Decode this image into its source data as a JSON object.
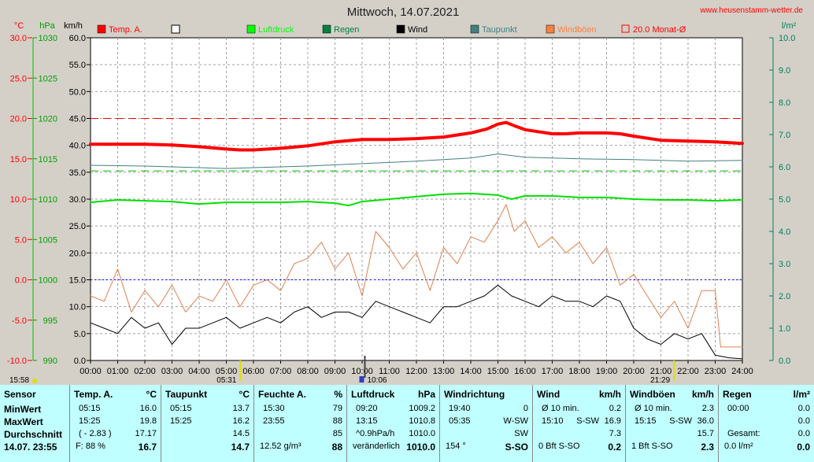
{
  "website": "www.heusenstamm-wetter.de",
  "chart_data": {
    "type": "line",
    "title": "Mittwoch, 14.07.2021",
    "axes": {
      "temp": {
        "unit": "°C",
        "min": -10,
        "max": 30,
        "ticks": [
          "30.0",
          "25.0",
          "20.0",
          "15.0",
          "10.0",
          "5.0",
          "0.0",
          "-5.0",
          "-10.0"
        ],
        "color": "#ff0000"
      },
      "pressure": {
        "unit": "hPa",
        "min": 990,
        "max": 1030,
        "ticks": [
          "1030",
          "1025",
          "1020",
          "1015",
          "1010",
          "1005",
          "1000",
          "995",
          "990"
        ],
        "color": "#00c000"
      },
      "wind": {
        "unit": "km/h",
        "min": 0,
        "max": 60,
        "ticks": [
          "60.0",
          "55.0",
          "50.0",
          "45.0",
          "40.0",
          "35.0",
          "30.0",
          "25.0",
          "20.0",
          "15.0",
          "10.0",
          "5.0",
          "0.0"
        ],
        "color": "#000000"
      },
      "rain": {
        "unit": "l/m²",
        "min": 0,
        "max": 10,
        "ticks": [
          "10.0",
          "9.0",
          "8.0",
          "7.0",
          "6.0",
          "5.0",
          "4.0",
          "3.0",
          "2.0",
          "1.0",
          "0.0"
        ],
        "color": "#008060"
      }
    },
    "x_ticks": [
      "00:00",
      "01:00",
      "02:00",
      "03:00",
      "04:00",
      "05:00",
      "06:00",
      "07:00",
      "08:00",
      "09:00",
      "10:00",
      "11:00",
      "12:00",
      "13:00",
      "14:00",
      "15:00",
      "16:00",
      "17:00",
      "18:00",
      "19:00",
      "20:00",
      "21:00",
      "22:00",
      "23:00",
      "24:00"
    ],
    "legend": [
      {
        "name": "Temp. A.",
        "color": "#ff0000",
        "style": "filled"
      },
      {
        "name": "",
        "color": "#ffffff",
        "style": "empty"
      },
      {
        "name": "Luftdruck",
        "color": "#00ff00",
        "style": "filled"
      },
      {
        "name": "Regen",
        "color": "#008040",
        "style": "filled"
      },
      {
        "name": "Wind",
        "color": "#000000",
        "style": "filled"
      },
      {
        "name": "Taupunkt",
        "color": "#408080",
        "style": "filled"
      },
      {
        "name": "Windböen",
        "color": "#ff8040",
        "style": "filled"
      },
      {
        "name": "20.0 Monat-Ø",
        "color": "#ff0000",
        "style": "outline"
      }
    ],
    "reference_lines": [
      {
        "axis": "temp",
        "value": 20,
        "color": "#ff0000"
      },
      {
        "axis": "temp",
        "value": 13.5,
        "color": "#00c000"
      },
      {
        "axis": "temp",
        "value": 0,
        "color": "#0000ff"
      }
    ],
    "markers": {
      "sunrise": "05:31",
      "sunset": "21:29",
      "current": "10:06",
      "left_time": "15:58"
    },
    "series": [
      {
        "name": "Temp. A.",
        "axis": "temp",
        "color": "#ff0000",
        "width": 4,
        "x": [
          0,
          1,
          2,
          3,
          4,
          5,
          5.5,
          6,
          7,
          8,
          9,
          10,
          11,
          12,
          13,
          14,
          14.6,
          15,
          15.3,
          15.6,
          16,
          17,
          17.5,
          18,
          19,
          19.5,
          20,
          21,
          22,
          23,
          23.5,
          24
        ],
        "y": [
          16.8,
          16.8,
          16.8,
          16.7,
          16.5,
          16.2,
          16.1,
          16.1,
          16.3,
          16.6,
          17.1,
          17.4,
          17.4,
          17.5,
          17.7,
          18.2,
          18.7,
          19.3,
          19.5,
          19.1,
          18.6,
          18.1,
          18.1,
          18.2,
          18.2,
          18.1,
          17.8,
          17.3,
          17.2,
          17.1,
          17.0,
          16.9
        ]
      },
      {
        "name": "Taupunkt",
        "axis": "temp",
        "color": "#408080",
        "width": 1,
        "x": [
          0,
          2,
          4,
          5,
          6,
          8,
          10,
          12,
          14,
          15,
          15.5,
          16,
          18,
          20,
          22,
          24
        ],
        "y": [
          14.2,
          14.1,
          13.9,
          13.8,
          13.9,
          14.1,
          14.4,
          14.7,
          15.1,
          15.6,
          15.4,
          15.2,
          15.0,
          14.9,
          14.7,
          14.8
        ]
      },
      {
        "name": "Luftdruck",
        "axis": "pressure",
        "color": "#00e000",
        "width": 2,
        "x": [
          0,
          1,
          2,
          3,
          4,
          5,
          6,
          7,
          8,
          9,
          9.5,
          10,
          11,
          12,
          13,
          14,
          15,
          15.5,
          16,
          17,
          18,
          19,
          20,
          21,
          22,
          23,
          24
        ],
        "y": [
          1009.6,
          1009.9,
          1009.8,
          1009.7,
          1009.4,
          1009.6,
          1009.6,
          1009.6,
          1009.7,
          1009.5,
          1009.2,
          1009.7,
          1010.0,
          1010.3,
          1010.6,
          1010.7,
          1010.5,
          1010.0,
          1010.4,
          1010.4,
          1010.2,
          1010.2,
          1010.0,
          1009.9,
          1009.9,
          1009.8,
          1009.9
        ]
      },
      {
        "name": "Windböen",
        "axis": "wind",
        "color": "#e08050",
        "width": 1,
        "x": [
          0,
          0.5,
          1,
          1.5,
          2,
          2.5,
          3,
          3.5,
          4,
          4.5,
          5,
          5.5,
          6,
          6.5,
          7,
          7.5,
          8,
          8.5,
          9,
          9.5,
          10,
          10.5,
          11,
          11.5,
          12,
          12.5,
          13,
          13.5,
          14,
          14.5,
          15,
          15.3,
          15.6,
          16,
          16.5,
          17,
          17.5,
          18,
          18.5,
          19,
          19.5,
          20,
          20.5,
          21,
          21.5,
          22,
          22.5,
          23,
          23.2,
          24
        ],
        "y": [
          12,
          11,
          17,
          9,
          13,
          10,
          14,
          9,
          12,
          11,
          15,
          10,
          14,
          15,
          13,
          18,
          19,
          22,
          17,
          20,
          12,
          24,
          21,
          17,
          20,
          13,
          21,
          18,
          23,
          22,
          26,
          29,
          24,
          26,
          21,
          23,
          20,
          22,
          18,
          21,
          14,
          16,
          12,
          8,
          11,
          6,
          13,
          13,
          2.5,
          2.5
        ]
      },
      {
        "name": "Wind",
        "axis": "wind",
        "color": "#000000",
        "width": 1,
        "x": [
          0,
          0.5,
          1,
          1.5,
          2,
          2.5,
          3,
          3.5,
          4,
          4.5,
          5,
          5.5,
          6,
          6.5,
          7,
          7.5,
          8,
          8.5,
          9,
          9.5,
          10,
          10.5,
          11,
          11.5,
          12,
          12.5,
          13,
          13.5,
          14,
          14.5,
          15,
          15.5,
          16,
          16.5,
          17,
          17.5,
          18,
          18.5,
          19,
          19.5,
          20,
          20.5,
          21,
          21.5,
          22,
          22.5,
          23,
          23.5,
          24
        ],
        "y": [
          7,
          6,
          5,
          8,
          6,
          7,
          3,
          6,
          6,
          7,
          8,
          6,
          7,
          8,
          7,
          9,
          10,
          8,
          9,
          9,
          8,
          11,
          10,
          9,
          8,
          7,
          10,
          10,
          11,
          12,
          14,
          12,
          11,
          10,
          12,
          11,
          11,
          10,
          12,
          11,
          6,
          4,
          3,
          5,
          4,
          5,
          1,
          0.5,
          0.3
        ]
      }
    ]
  },
  "table": {
    "sensor": {
      "header": "Sensor",
      "rows": [
        "MinWert",
        "MaxWert",
        "Durchschnitt"
      ],
      "footer": "14.07. 23:55"
    },
    "temp": {
      "header": "Temp. A.",
      "unit": "°C",
      "rows": [
        [
          "05:15",
          "16.0"
        ],
        [
          "15:25",
          "19.8"
        ],
        [
          "( - 2.83 )",
          "17.17"
        ]
      ],
      "footer": [
        "F: 88 %",
        "16.7"
      ]
    },
    "taupunkt": {
      "header": "Taupunkt",
      "unit": "°C",
      "rows": [
        [
          "05:15",
          "13.7"
        ],
        [
          "15:25",
          "16.2"
        ],
        [
          "",
          "14.5"
        ]
      ],
      "footer": [
        "",
        "14.7"
      ]
    },
    "feuchte": {
      "header": "Feuchte A.",
      "unit": "%",
      "rows": [
        [
          "15:30",
          "79"
        ],
        [
          "23:55",
          "88"
        ],
        [
          "",
          "85"
        ]
      ],
      "footer": [
        "12.52 g/m³",
        "88"
      ]
    },
    "luftdruck": {
      "header": "Luftdruck",
      "unit": "hPa",
      "rows": [
        [
          "09:20",
          "1009.2"
        ],
        [
          "13:15",
          "1010.8"
        ],
        [
          "^0.9hPa/h",
          "1010.0"
        ]
      ],
      "footer": [
        "veränderlich",
        "1010.0"
      ]
    },
    "windrichtung": {
      "header": "Windrichtung",
      "unit": "",
      "rows": [
        [
          "19:40",
          "",
          "0"
        ],
        [
          "05:35",
          "",
          "W-SW"
        ],
        [
          "",
          "",
          "SW"
        ]
      ],
      "footer": [
        "154 °",
        "S-SO"
      ]
    },
    "wind": {
      "header": "Wind",
      "unit": "km/h",
      "rows": [
        [
          "Ø 10 min.",
          "",
          "0.2"
        ],
        [
          "15:10",
          "S-SW",
          "16.9"
        ],
        [
          "",
          "",
          "7.3"
        ]
      ],
      "footer": [
        "0 Bft S-SO",
        "0.2"
      ]
    },
    "windboeen": {
      "header": "Windböen",
      "unit": "km/h",
      "rows": [
        [
          "Ø 10 min.",
          "",
          "2.3"
        ],
        [
          "15:15",
          "S-SW",
          "36.0"
        ],
        [
          "",
          "",
          "15.7"
        ]
      ],
      "footer": [
        "1 Bft S-SO",
        "2.3"
      ]
    },
    "regen": {
      "header": "Regen",
      "unit": "l/m²",
      "rows": [
        [
          "00:00",
          "",
          "0.0"
        ],
        [
          "",
          "",
          "0.0"
        ],
        [
          "Gesamt:",
          "",
          "0.0"
        ]
      ],
      "footer": [
        "0.0 l/m²",
        "0.0"
      ]
    }
  }
}
